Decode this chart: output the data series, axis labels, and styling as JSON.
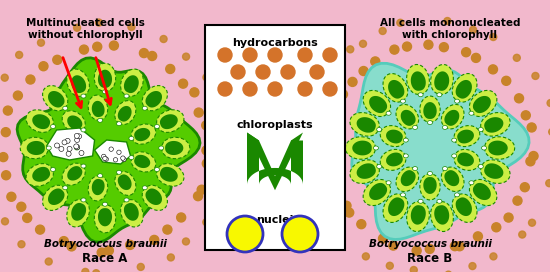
{
  "bg_color": "#f2b8cc",
  "title_left": "Multinucleated cells\nwithout chlorophyll",
  "title_right": "All cells mononucleated\nwith chlorophyll",
  "label_left_italic": "Botryococcus braunii",
  "label_left_bold": "Race A",
  "label_right_italic": "Botryococcus braunii",
  "label_right_bold": "Race B",
  "legend_title1": "hydrocarbons",
  "legend_title2": "chloroplasts",
  "legend_title3": "nuclei",
  "dot_color": "#c8832a",
  "green_dark": "#1a8800",
  "green_mid": "#55cc00",
  "green_light": "#ccee44",
  "green_bright": "#aaff00",
  "cyan_colony": "#55ccbb",
  "cyan_light": "#88ddcc",
  "yellow_color": "#f8f800",
  "blue_outline": "#3333bb"
}
